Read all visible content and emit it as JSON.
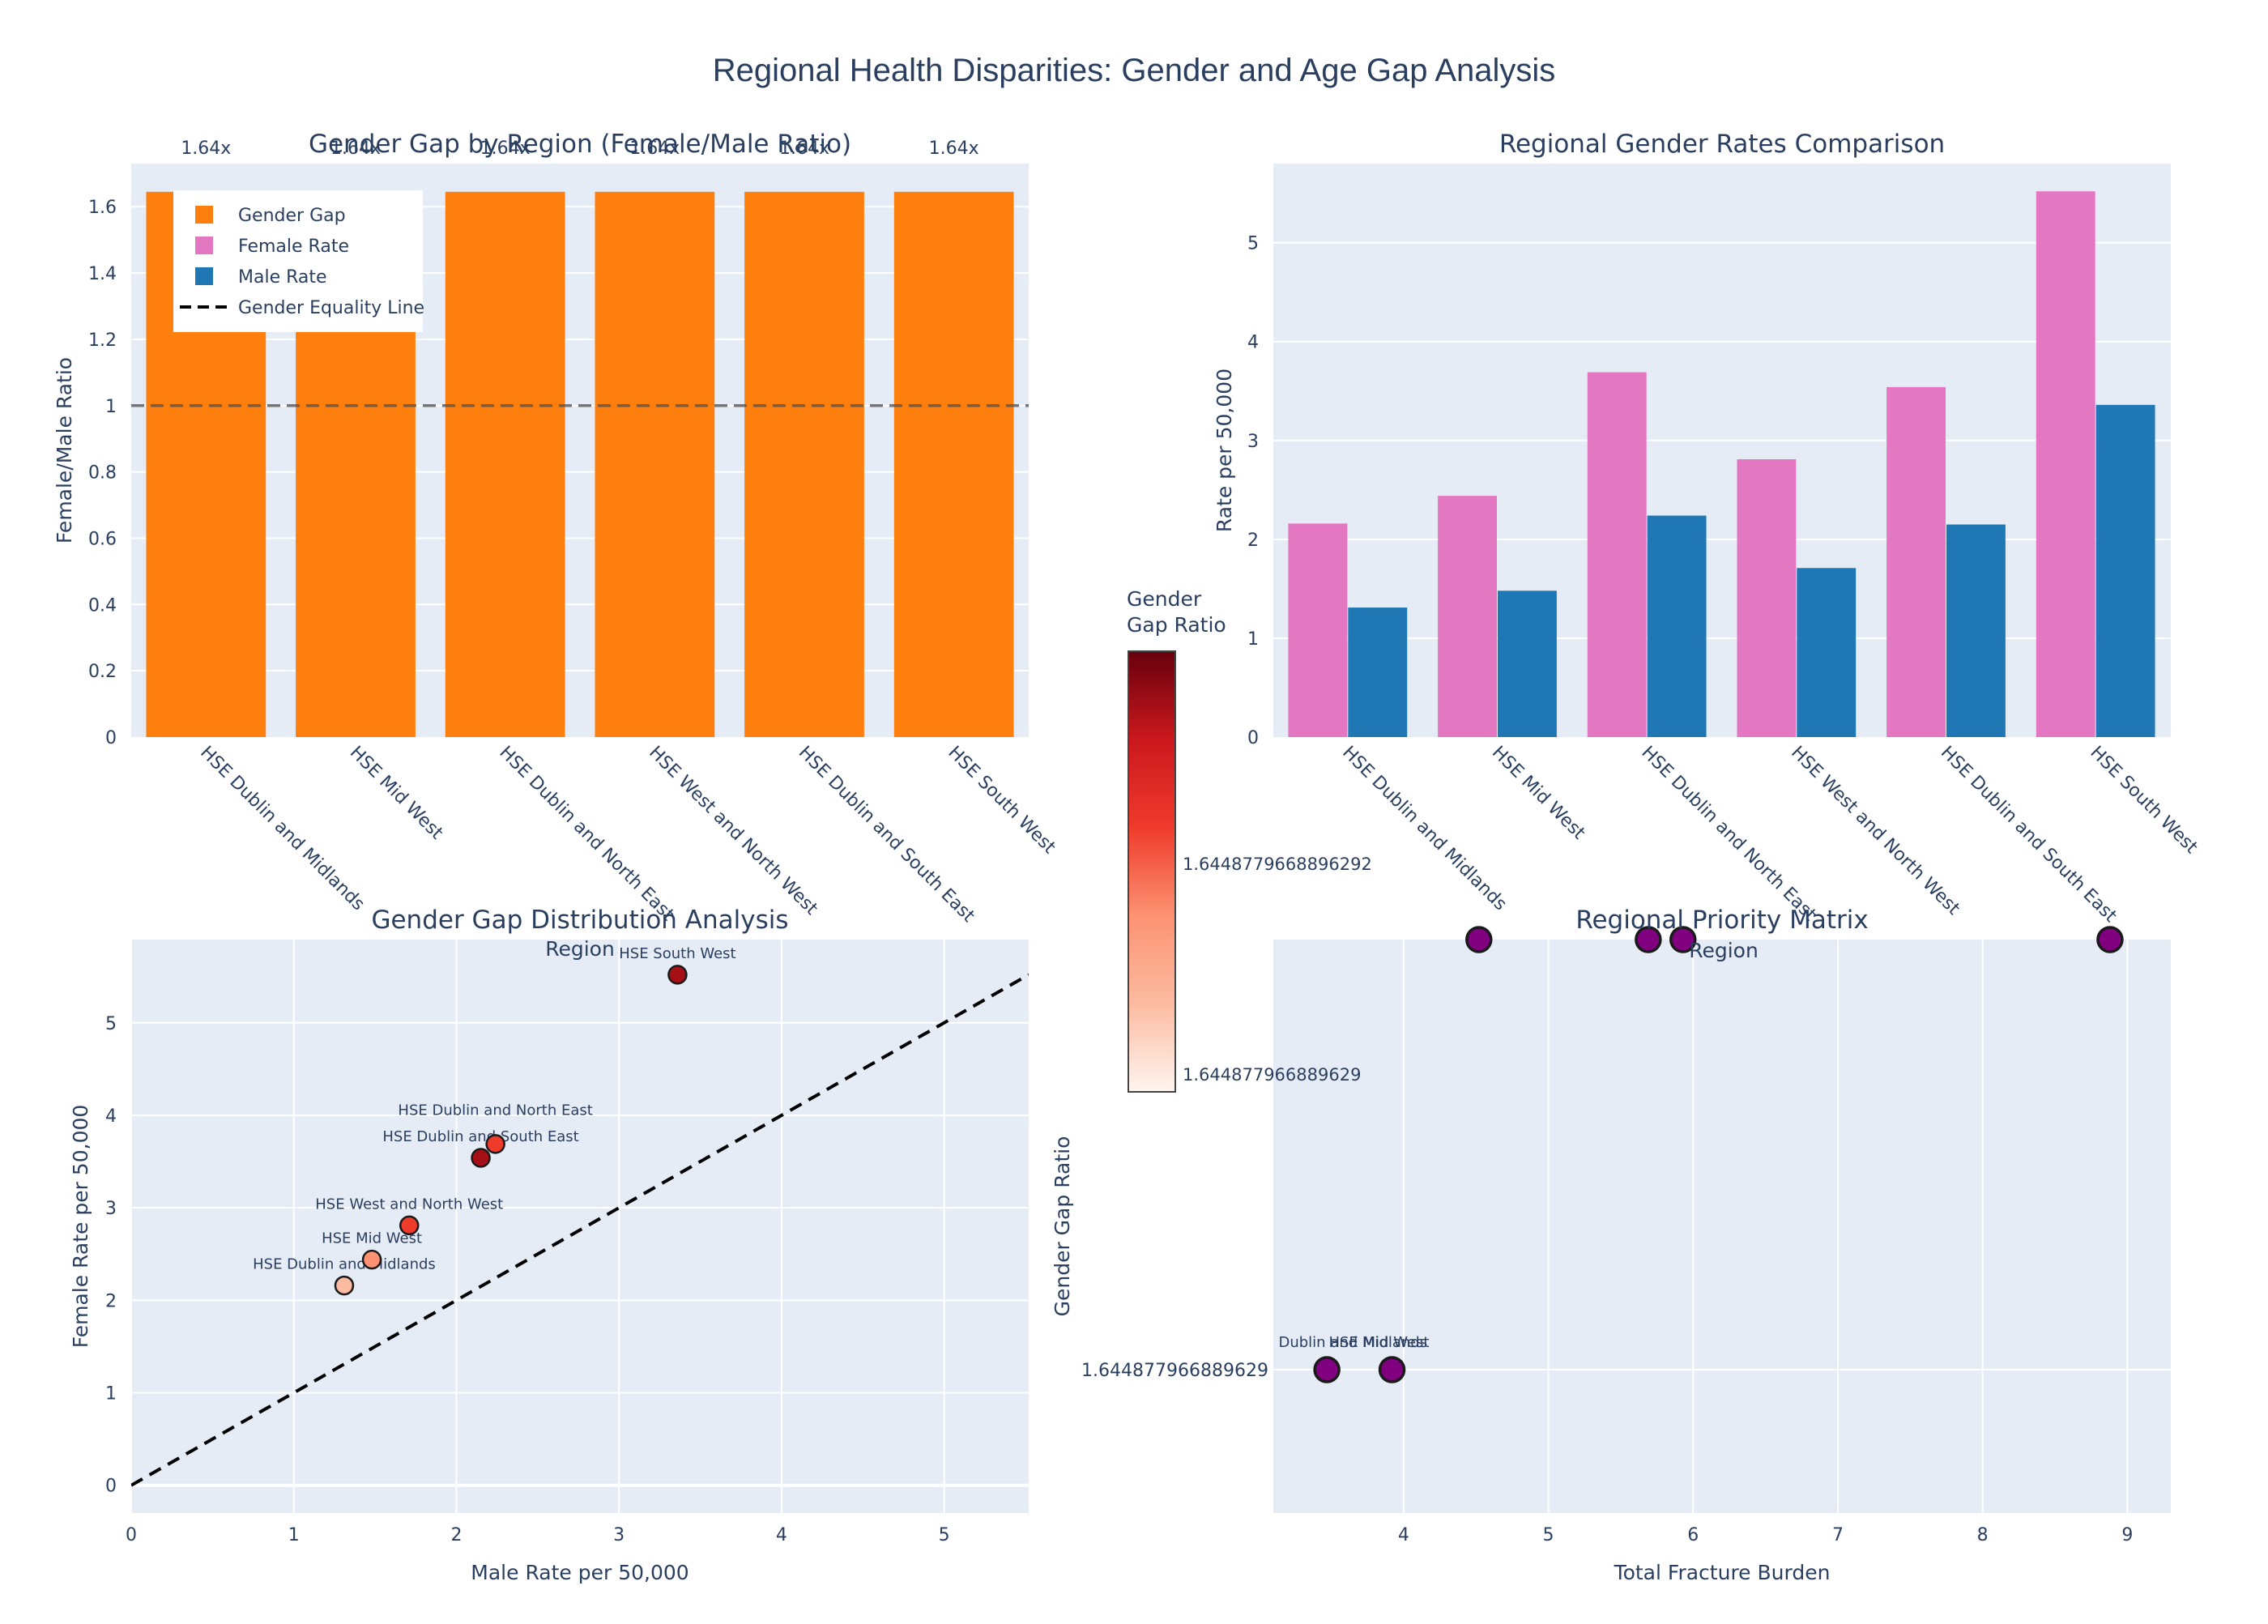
{
  "figure": {
    "title": "Regional Health Disparities: Gender and Age Gap Analysis"
  },
  "colors": {
    "plot_bg": "#e5ecf6",
    "grid": "#ffffff",
    "text": "#2a3f5f",
    "gender_gap": "#ff7f0e",
    "female": "#e377c2",
    "male": "#1f77b4",
    "priority_marker": "#800080",
    "equality_line": "#000000"
  },
  "colorbar": {
    "title_line1": "Gender",
    "title_line2": "Gap Ratio",
    "tick_high": "1.6448779668896292",
    "tick_low": "1.644877966889629"
  },
  "chart_data": [
    {
      "id": "gap_bars",
      "type": "bar",
      "title": "Gender Gap by Region (Female/Male Ratio)",
      "xlabel": "",
      "ylabel": "Female/Male Ratio",
      "categories": [
        "HSE Dublin and Midlands",
        "HSE Mid West",
        "HSE Dublin and North East",
        "HSE West and North West",
        "HSE Dublin and South East",
        "HSE South West"
      ],
      "values": [
        1.6449,
        1.6449,
        1.6449,
        1.6449,
        1.6449,
        1.6449
      ],
      "data_labels": [
        "1.64x",
        "1.64x",
        "1.64x",
        "1.64x",
        "1.64x",
        "1.64x"
      ],
      "ylim": [
        0,
        1.73
      ],
      "yticks": [
        0,
        0.2,
        0.4,
        0.6,
        0.8,
        1,
        1.2,
        1.4,
        1.6
      ],
      "ytick_labels": [
        "0",
        "0.2",
        "0.4",
        "0.6",
        "0.8",
        "1",
        "1.2",
        "1.4",
        "1.6"
      ],
      "reference_line": 1,
      "legend": {
        "position": "top-left",
        "items": [
          {
            "label": "Gender Gap",
            "kind": "square",
            "color": "#ff7f0e"
          },
          {
            "label": "Female Rate",
            "kind": "square",
            "color": "#e377c2"
          },
          {
            "label": "Male Rate",
            "kind": "square",
            "color": "#1f77b4"
          },
          {
            "label": "Gender Equality Line",
            "kind": "dash",
            "color": "#000000"
          }
        ]
      }
    },
    {
      "id": "rate_bars",
      "type": "bar",
      "title": "Regional Gender Rates Comparison",
      "xlabel": "",
      "ylabel": "Rate per 50,000",
      "categories": [
        "HSE Dublin and Midlands",
        "HSE Mid West",
        "HSE Dublin and North East",
        "HSE West and North West",
        "HSE Dublin and South East",
        "HSE South West"
      ],
      "series": [
        {
          "name": "Female Rate",
          "values": [
            2.16,
            2.44,
            3.69,
            2.81,
            3.54,
            5.52
          ]
        },
        {
          "name": "Male Rate",
          "values": [
            1.31,
            1.48,
            2.24,
            1.71,
            2.15,
            3.36
          ]
        }
      ],
      "ylim": [
        0,
        5.8
      ],
      "yticks": [
        0,
        1,
        2,
        3,
        4,
        5
      ],
      "ytick_labels": [
        "0",
        "1",
        "2",
        "3",
        "4",
        "5"
      ]
    },
    {
      "id": "scatter_dist",
      "type": "scatter",
      "title": "Gender Gap Distribution Analysis",
      "xlabel": "Male Rate per 50,000",
      "ylabel": "Female Rate per 50,000",
      "legend_title": "Region",
      "xlim": [
        0,
        5.52
      ],
      "ylim": [
        -0.3,
        5.9
      ],
      "xticks": [
        0,
        1,
        2,
        3,
        4,
        5
      ],
      "xtick_labels": [
        "0",
        "1",
        "2",
        "3",
        "4",
        "5"
      ],
      "yticks": [
        0,
        1,
        2,
        3,
        4,
        5
      ],
      "ytick_labels": [
        "0",
        "1",
        "2",
        "3",
        "4",
        "5"
      ],
      "points": [
        {
          "label": "HSE Dublin and Midlands",
          "x": 1.31,
          "y": 2.16,
          "color": "#fcbba1",
          "label_dy": -1.2
        },
        {
          "label": "HSE Mid West",
          "x": 1.48,
          "y": 2.44,
          "color": "#fc9272",
          "label_dy": -1.2
        },
        {
          "label": "HSE West and North West",
          "x": 1.71,
          "y": 2.81,
          "color": "#ef3b2c",
          "label_dy": -1.2
        },
        {
          "label": "HSE Dublin and South East",
          "x": 2.15,
          "y": 3.54,
          "color": "#a50f15",
          "label_dy": -1.2
        },
        {
          "label": "HSE Dublin and North East",
          "x": 2.24,
          "y": 3.69,
          "color": "#ef3b2c",
          "label_dy": -1.9
        },
        {
          "label": "HSE South West",
          "x": 3.36,
          "y": 5.52,
          "color": "#a50f15",
          "label_dy": -1.2
        }
      ],
      "equality_line": {
        "x": [
          0,
          5.52
        ],
        "y": [
          0,
          5.52
        ]
      }
    },
    {
      "id": "priority_matrix",
      "type": "scatter",
      "title": "Regional Priority Matrix",
      "xlabel": "Total Fracture Burden",
      "ylabel": "Gender Gap Ratio",
      "legend_title": "Region",
      "xlim": [
        3.1,
        9.3
      ],
      "ylim": [
        0,
        1
      ],
      "xticks": [
        4,
        5,
        6,
        7,
        8,
        9
      ],
      "xtick_labels": [
        "4",
        "5",
        "6",
        "7",
        "8",
        "9"
      ],
      "yticks": [
        0.25
      ],
      "ytick_labels": [
        "1.644877966889629"
      ],
      "points": [
        {
          "label": "Dublin and Midlands",
          "x": 3.47,
          "y": 0.25,
          "text_x": 3.65
        },
        {
          "label": "HSE Mid West",
          "x": 3.92,
          "y": 0.25,
          "text_x": 3.83
        },
        {
          "label": "",
          "x": 4.52,
          "y": 1.0
        },
        {
          "label": "",
          "x": 5.69,
          "y": 1.0
        },
        {
          "label": "",
          "x": 5.93,
          "y": 1.0
        },
        {
          "label": "",
          "x": 8.88,
          "y": 1.0
        }
      ]
    }
  ]
}
